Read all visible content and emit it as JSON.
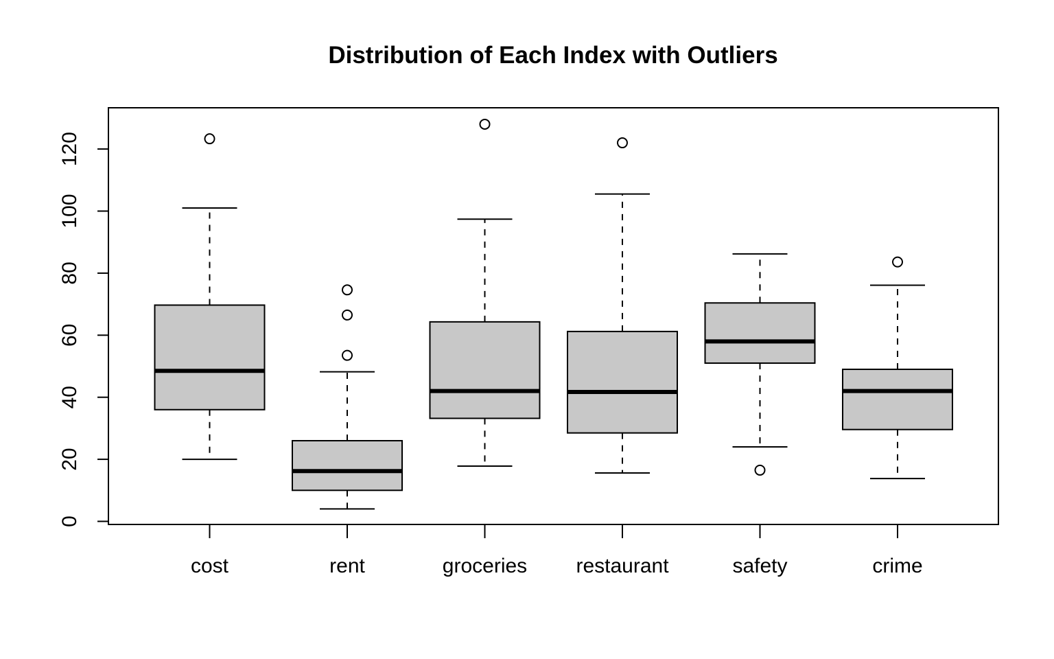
{
  "chart_data": {
    "type": "boxplot",
    "title": "Distribution of Each Index with Outliers",
    "xlabel": "",
    "ylabel": "",
    "ylim": [
      -1,
      133
    ],
    "y_ticks": [
      0,
      20,
      40,
      60,
      80,
      100,
      120
    ],
    "categories": [
      "cost",
      "rent",
      "groceries",
      "restaurant",
      "safety",
      "crime"
    ],
    "boxes": [
      {
        "name": "cost",
        "whisker_low": 20,
        "q1": 36,
        "median": 48.5,
        "q3": 69.7,
        "whisker_high": 101,
        "outliers": [
          123.3
        ]
      },
      {
        "name": "rent",
        "whisker_low": 4,
        "q1": 10,
        "median": 16.2,
        "q3": 26,
        "whisker_high": 48.2,
        "outliers": [
          53.5,
          66.5,
          74.6
        ]
      },
      {
        "name": "groceries",
        "whisker_low": 17.8,
        "q1": 33.2,
        "median": 42,
        "q3": 64.3,
        "whisker_high": 97.4,
        "outliers": [
          128
        ]
      },
      {
        "name": "restaurant",
        "whisker_low": 15.6,
        "q1": 28.5,
        "median": 41.7,
        "q3": 61.2,
        "whisker_high": 105.5,
        "outliers": [
          122
        ]
      },
      {
        "name": "safety",
        "whisker_low": 24,
        "q1": 51,
        "median": 58,
        "q3": 70.4,
        "whisker_high": 86.2,
        "outliers": [
          16.5
        ]
      },
      {
        "name": "crime",
        "whisker_low": 13.8,
        "q1": 29.6,
        "median": 42,
        "q3": 49,
        "whisker_high": 76.1,
        "outliers": [
          83.6
        ]
      }
    ],
    "box_fill": "#c8c8c8",
    "line_color": "#000000",
    "grid": false,
    "legend": "none"
  }
}
